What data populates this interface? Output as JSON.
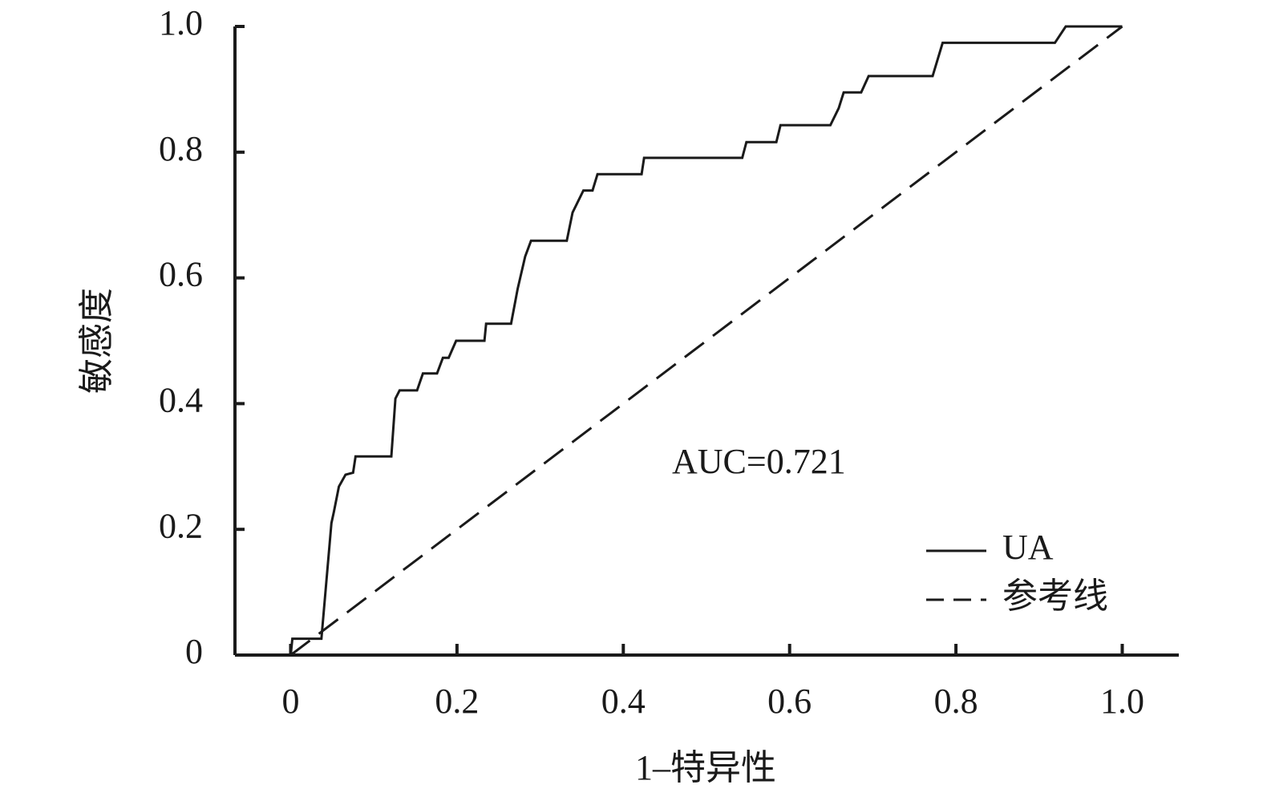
{
  "chart_data": {
    "type": "line",
    "x_label": "1–特异性",
    "y_label": "敏感度",
    "annotation": "AUC=0.721",
    "xlim": [
      -0.067,
      1.068
    ],
    "ylim": [
      0,
      1
    ],
    "xticks": [
      0,
      0.2,
      0.4,
      0.6,
      0.8,
      {
        "value": 1,
        "label": "1.0"
      }
    ],
    "yticks": [
      0,
      0.2,
      0.4,
      0.6,
      0.8,
      {
        "value": 1,
        "label": "1.0"
      }
    ],
    "legend": "lower right",
    "series": [
      {
        "name": "UA",
        "color": "#1a1a1a",
        "dash": "solid",
        "x": [
          0,
          0.002,
          0.037,
          0.049,
          0.052,
          0.058,
          0.066,
          0.075,
          0.078,
          0.121,
          0.126,
          0.131,
          0.152,
          0.159,
          0.176,
          0.183,
          0.19,
          0.199,
          0.233,
          0.235,
          0.265,
          0.273,
          0.282,
          0.289,
          0.332,
          0.339,
          0.352,
          0.363,
          0.369,
          0.422,
          0.425,
          0.543,
          0.548,
          0.584,
          0.589,
          0.649,
          0.659,
          0.665,
          0.686,
          0.695,
          0.772,
          0.784,
          0.919,
          0.932,
          1.0
        ],
        "values": [
          0,
          0.026,
          0.026,
          0.21,
          0.228,
          0.268,
          0.287,
          0.29,
          0.316,
          0.316,
          0.408,
          0.421,
          0.421,
          0.448,
          0.448,
          0.473,
          0.473,
          0.5,
          0.5,
          0.527,
          0.527,
          0.583,
          0.634,
          0.659,
          0.659,
          0.704,
          0.739,
          0.739,
          0.765,
          0.765,
          0.791,
          0.791,
          0.816,
          0.816,
          0.843,
          0.843,
          0.87,
          0.895,
          0.895,
          0.921,
          0.921,
          0.974,
          0.974,
          1.0,
          1.0
        ]
      },
      {
        "name": "参考线",
        "color": "#1a1a1a",
        "dash": "dashed",
        "x": [
          0,
          1
        ],
        "values": [
          0,
          1
        ]
      }
    ]
  }
}
